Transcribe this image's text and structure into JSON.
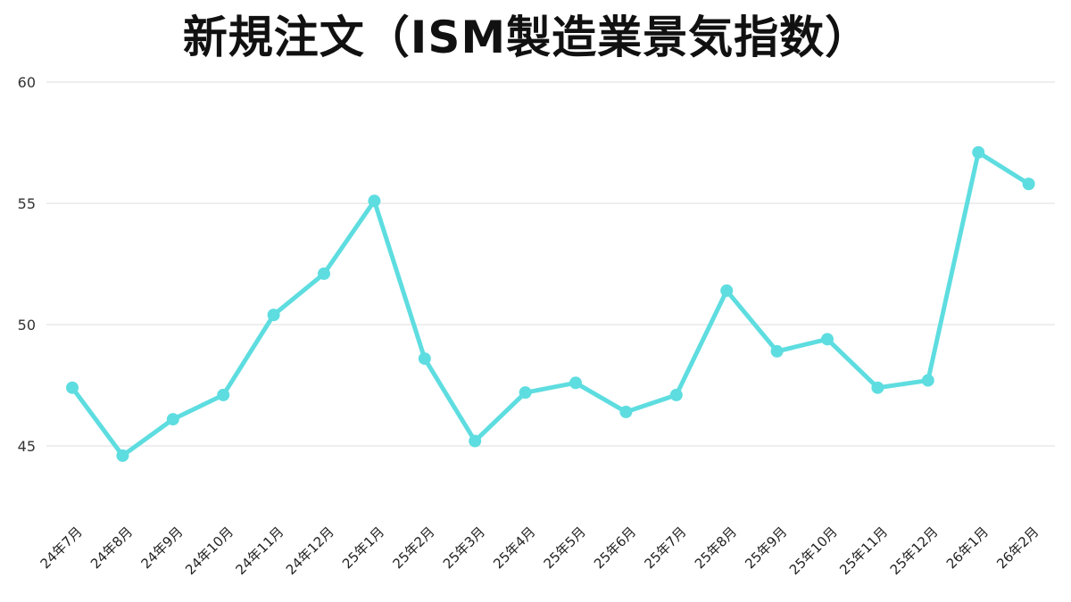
{
  "chart_data": {
    "type": "line",
    "title": "新規注文（ISM製造業景気指数）",
    "xlabel": "",
    "ylabel": "",
    "categories": [
      "24年7月",
      "24年8月",
      "24年9月",
      "24年10月",
      "24年11月",
      "24年12月",
      "25年1月",
      "25年2月",
      "25年3月",
      "25年4月",
      "25年5月",
      "25年6月",
      "25年7月",
      "25年8月",
      "25年9月",
      "25年10月",
      "25年11月",
      "25年12月",
      "26年1月",
      "26年2月"
    ],
    "series": [
      {
        "values": [
          47.4,
          44.6,
          46.1,
          47.1,
          50.4,
          52.1,
          55.1,
          48.6,
          45.2,
          47.2,
          47.6,
          46.4,
          47.1,
          51.4,
          48.9,
          49.4,
          47.4,
          47.7,
          57.1,
          55.8
        ],
        "color": "#5EDDE0"
      }
    ],
    "ylim": [
      42,
      60
    ],
    "yticks": [
      45,
      50,
      55,
      60
    ],
    "grid": true,
    "legend": "none"
  }
}
